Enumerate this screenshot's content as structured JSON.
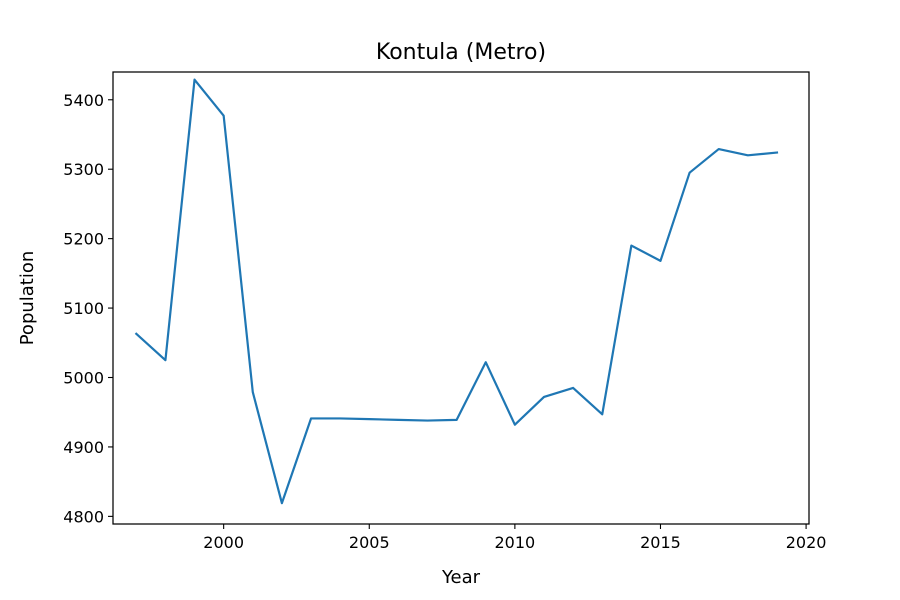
{
  "chart_data": {
    "type": "line",
    "title": "Kontula (Metro)",
    "xlabel": "Year",
    "ylabel": "Population",
    "xlim": [
      1996.2,
      2020.1
    ],
    "ylim": [
      4789,
      5440
    ],
    "xticks": [
      2000,
      2005,
      2010,
      2015,
      2020
    ],
    "yticks": [
      4800,
      4900,
      5000,
      5100,
      5200,
      5300,
      5400
    ],
    "grid": false,
    "series": [
      {
        "color": "#1f77b4",
        "x": [
          1997,
          1998,
          1999,
          2000,
          2001,
          2002,
          2003,
          2004,
          2005,
          2006,
          2007,
          2008,
          2009,
          2010,
          2011,
          2012,
          2013,
          2014,
          2015,
          2016,
          2017,
          2018,
          2019
        ],
        "y": [
          5063,
          5025,
          5429,
          5377,
          4979,
          4819,
          4941,
          4941,
          4940,
          4939,
          4938,
          4939,
          5022,
          4932,
          4972,
          4985,
          4947,
          5190,
          5168,
          5295,
          5329,
          5320,
          5324
        ]
      }
    ]
  }
}
